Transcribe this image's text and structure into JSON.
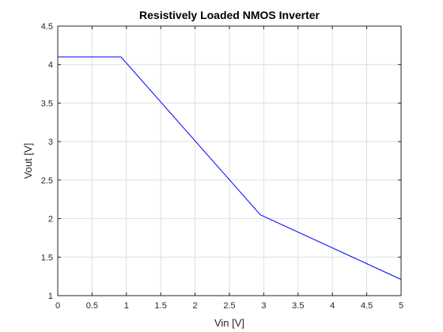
{
  "chart_data": {
    "type": "line",
    "title": "Resistively Loaded NMOS Inverter",
    "xlabel": "Vin [V]",
    "ylabel": "Vout [V]",
    "xlim": [
      0,
      5
    ],
    "ylim": [
      1,
      4.5
    ],
    "xticks": [
      0,
      0.5,
      1,
      1.5,
      2,
      2.5,
      3,
      3.5,
      4,
      4.5,
      5
    ],
    "xtick_labels": [
      "0",
      "0.5",
      "1",
      "1.5",
      "2",
      "2.5",
      "3",
      "3.5",
      "4",
      "4.5",
      "5"
    ],
    "yticks": [
      1,
      1.5,
      2,
      2.5,
      3,
      3.5,
      4,
      4.5
    ],
    "ytick_labels": [
      "1",
      "1.5",
      "2",
      "2.5",
      "3",
      "3.5",
      "4",
      "4.5"
    ],
    "grid": true,
    "series": [
      {
        "color": "#0000ff",
        "x": [
          0,
          0.92,
          2.95,
          5
        ],
        "y": [
          4.1,
          4.1,
          2.05,
          1.21
        ]
      }
    ]
  }
}
